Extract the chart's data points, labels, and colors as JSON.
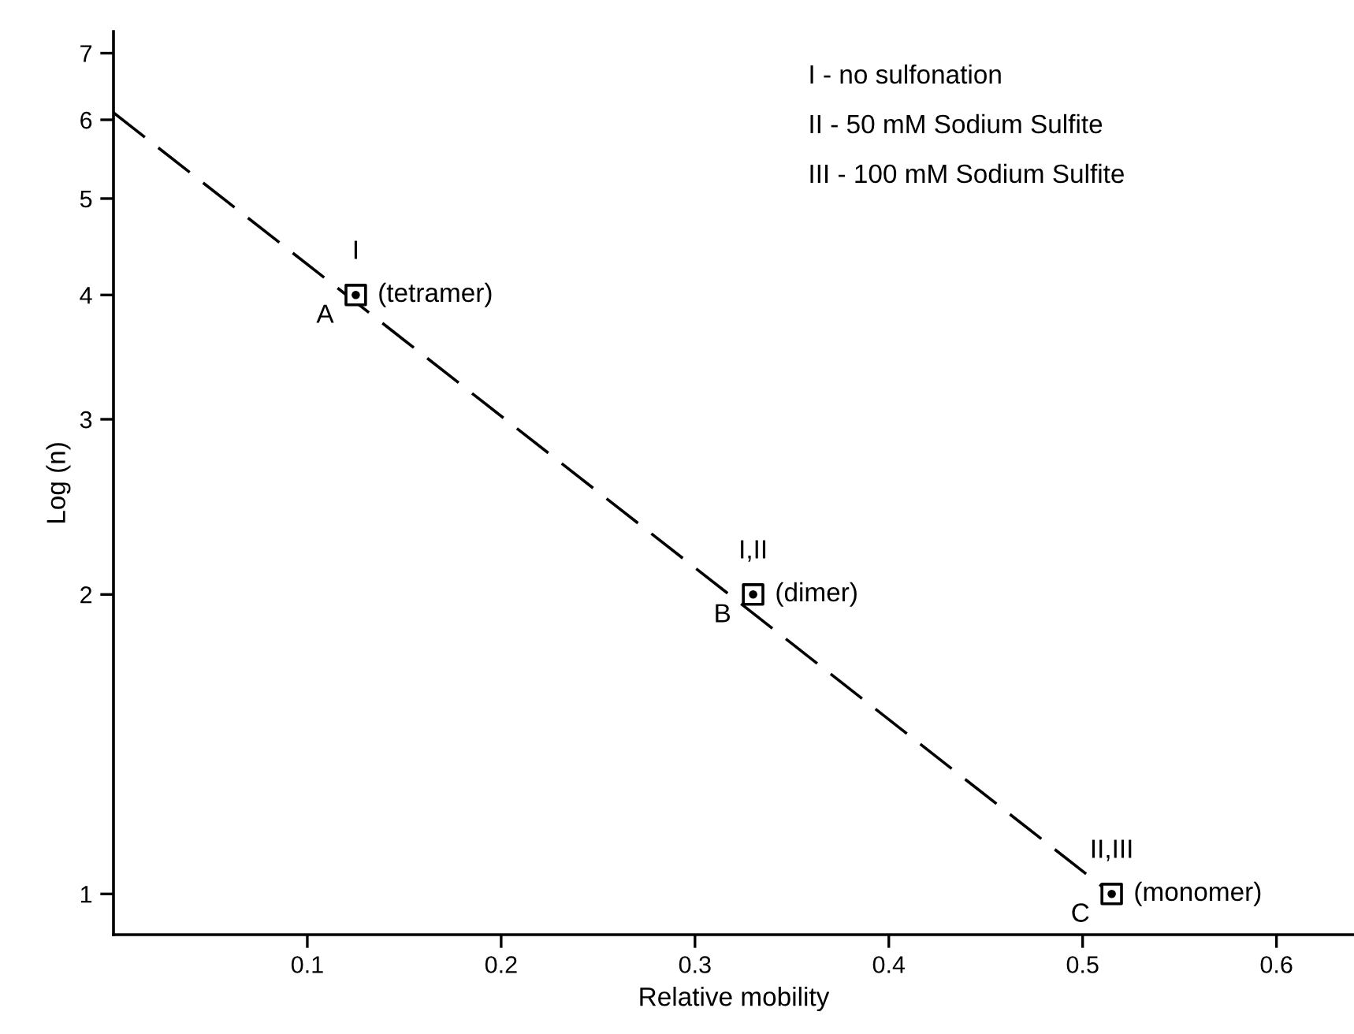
{
  "chart_data": {
    "type": "scatter",
    "xlabel": "Relative mobility",
    "ylabel": "Log (n)",
    "series": [
      {
        "type": "line",
        "color": "#000000",
        "x": [
          0,
          0.515
        ],
        "values": [
          6.1,
          1.0
        ],
        "line_style": "dashed"
      },
      {
        "color": "#000000",
        "x": [
          0.125,
          0.33,
          0.515
        ],
        "values": [
          4.0,
          2.0,
          1.0
        ],
        "marker": "square"
      }
    ],
    "xlim": [
      0,
      0.64
    ],
    "xticks": [
      0.1,
      0.2,
      0.3,
      0.4,
      0.5,
      0.6
    ],
    "ylim": [
      0.91,
      7.36
    ],
    "yticks": [
      1,
      2,
      3,
      4,
      5,
      6,
      7
    ],
    "log": "y",
    "grid": false,
    "annotations": [
      {
        "text": "I",
        "x": 0.125,
        "y": 4.0
      },
      {
        "text": "(tetramer)",
        "x": 0.125,
        "y": 4.0
      },
      {
        "text": "A",
        "x": 0.125,
        "y": 4.0
      },
      {
        "text": "I,II",
        "x": 0.33,
        "y": 2.0
      },
      {
        "text": "(dimer)",
        "x": 0.33,
        "y": 2.0
      },
      {
        "text": "B",
        "x": 0.33,
        "y": 2.0
      },
      {
        "text": "II,III",
        "x": 0.515,
        "y": 1.0
      },
      {
        "text": "(monomer)",
        "x": 0.515,
        "y": 1.0
      },
      {
        "text": "C",
        "x": 0.515,
        "y": 1.0
      },
      "I - no sulfonation",
      "II - 50 mM Sodium Sulfite",
      "III - 100 mM Sodium Sulfite"
    ]
  }
}
